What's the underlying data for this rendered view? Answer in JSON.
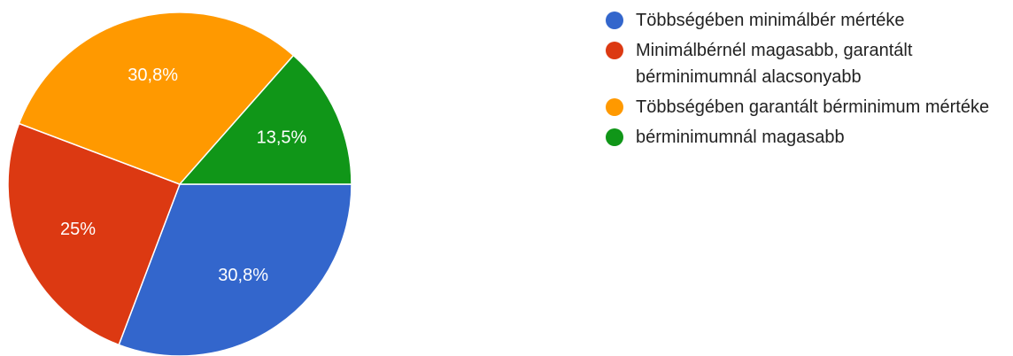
{
  "chart_data": {
    "type": "pie",
    "categories": [
      "Többségében minimálbér mértéke",
      "Minimálbérnél magasabb, garantált bérminimumnál alacsonyabb",
      "Többségében garantált bérminimum mértéke",
      "bérminimumnál magasabb"
    ],
    "values": [
      30.8,
      25,
      30.8,
      13.5
    ],
    "value_labels": [
      "30,8%",
      "25%",
      "30,8%",
      "13,5%"
    ],
    "colors": [
      "#3366cc",
      "#dc3912",
      "#ff9900",
      "#109618"
    ],
    "legend": "right"
  }
}
